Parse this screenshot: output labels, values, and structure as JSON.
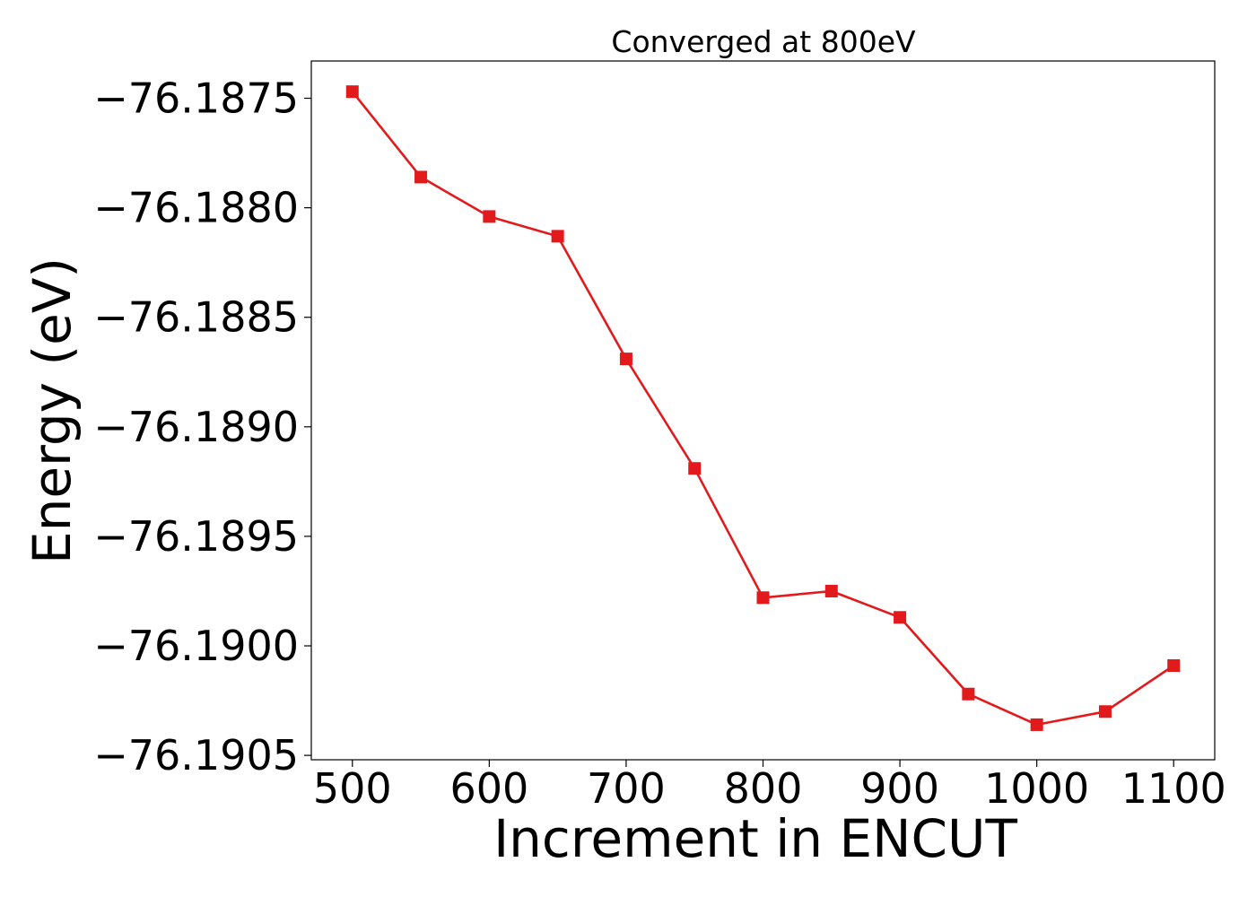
{
  "chart_data": {
    "type": "line",
    "title": "Converged at 800eV",
    "xlabel": "Increment in ENCUT",
    "ylabel": "Energy (eV)",
    "xlim": [
      470,
      1130
    ],
    "ylim": [
      -76.19052,
      -76.18733
    ],
    "xticks": [
      500,
      600,
      700,
      800,
      900,
      1000,
      1100
    ],
    "yticks": [
      -76.1875,
      -76.188,
      -76.1885,
      -76.189,
      -76.1895,
      -76.19,
      -76.1905
    ],
    "ytick_labels": [
      "−76.1875",
      "−76.1880",
      "−76.1885",
      "−76.1890",
      "−76.1895",
      "−76.1900",
      "−76.1905"
    ],
    "grid": false,
    "series": [
      {
        "marker": "square",
        "color": "#e31a1c",
        "x": [
          500,
          550,
          600,
          650,
          700,
          750,
          800,
          850,
          900,
          950,
          1000,
          1050,
          1100
        ],
        "y": [
          -76.18747,
          -76.18786,
          -76.18804,
          -76.18813,
          -76.18869,
          -76.18919,
          -76.18978,
          -76.18975,
          -76.18987,
          -76.19022,
          -76.19036,
          -76.1903,
          -76.19009
        ]
      }
    ]
  }
}
